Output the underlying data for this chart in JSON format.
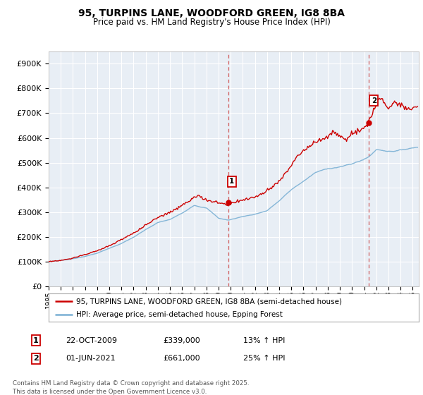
{
  "title": "95, TURPINS LANE, WOODFORD GREEN, IG8 8BA",
  "subtitle": "Price paid vs. HM Land Registry's House Price Index (HPI)",
  "title_fontsize": 10,
  "subtitle_fontsize": 8.5,
  "ylim": [
    0,
    950000
  ],
  "yticks": [
    0,
    100000,
    200000,
    300000,
    400000,
    500000,
    600000,
    700000,
    800000,
    900000
  ],
  "background_color": "#ffffff",
  "plot_bg_color": "#e8eef5",
  "grid_color": "#ffffff",
  "red_color": "#cc0000",
  "blue_color": "#7ab0d4",
  "marker1_x": 2009.8,
  "marker1_y": 339000,
  "marker1_label": "1",
  "marker2_x": 2021.4,
  "marker2_y": 661000,
  "marker2_label": "2",
  "vline1_x": 2009.8,
  "vline2_x": 2021.4,
  "legend_line1": "95, TURPINS LANE, WOODFORD GREEN, IG8 8BA (semi-detached house)",
  "legend_line2": "HPI: Average price, semi-detached house, Epping Forest",
  "annotation1_box": "1",
  "annotation1_date": "22-OCT-2009",
  "annotation1_price": "£339,000",
  "annotation1_hpi": "13% ↑ HPI",
  "annotation2_box": "2",
  "annotation2_date": "01-JUN-2021",
  "annotation2_price": "£661,000",
  "annotation2_hpi": "25% ↑ HPI",
  "footer": "Contains HM Land Registry data © Crown copyright and database right 2025.\nThis data is licensed under the Open Government Licence v3.0.",
  "xmin": 1995,
  "xmax": 2025.5,
  "xticks": [
    1995,
    1996,
    1997,
    1998,
    1999,
    2000,
    2001,
    2002,
    2003,
    2004,
    2005,
    2006,
    2007,
    2008,
    2009,
    2010,
    2011,
    2012,
    2013,
    2014,
    2015,
    2016,
    2017,
    2018,
    2019,
    2020,
    2021,
    2022,
    2023,
    2024,
    2025
  ]
}
